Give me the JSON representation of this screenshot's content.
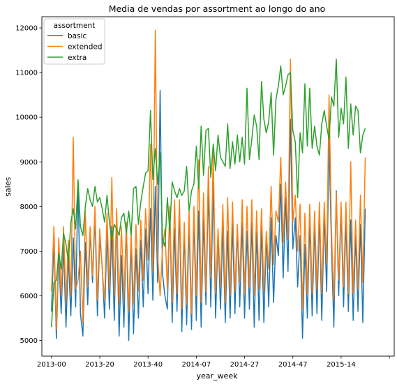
{
  "chart_data": {
    "type": "line",
    "title": "Media de vendas por assortment ao longo do ano",
    "xlabel": "year_week",
    "ylabel": "sales",
    "x_ticks": [
      {
        "pos": 0,
        "label": "2013-00"
      },
      {
        "pos": 20,
        "label": "2013-20"
      },
      {
        "pos": 40,
        "label": "2013-40"
      },
      {
        "pos": 60,
        "label": "2014-07"
      },
      {
        "pos": 80,
        "label": "2014-27"
      },
      {
        "pos": 100,
        "label": "2014-47"
      },
      {
        "pos": 120,
        "label": "2015-14"
      },
      {
        "pos": 140,
        "label": ""
      }
    ],
    "xlim": [
      -4,
      142
    ],
    "ylim": [
      4650,
      12250
    ],
    "y_ticks": [
      5000,
      6000,
      7000,
      8000,
      9000,
      10000,
      11000,
      12000
    ],
    "legend": {
      "title": "assortment",
      "placement": "top-left"
    },
    "series": [
      {
        "name": "basic",
        "color": "#1f77b4",
        "values": [
          5650,
          7250,
          5050,
          6950,
          5600,
          7150,
          5300,
          6900,
          5550,
          7300,
          5750,
          8550,
          5600,
          5100,
          7200,
          5800,
          7450,
          6300,
          7800,
          5550,
          7300,
          6650,
          5500,
          7450,
          5700,
          7550,
          5450,
          7850,
          5100,
          6900,
          5300,
          7650,
          5000,
          7250,
          5150,
          7050,
          5500,
          7250,
          5750,
          7500,
          6050,
          7950,
          5900,
          8450,
          6300,
          10600,
          6500,
          6000,
          5700,
          7950,
          5400,
          7500,
          5650,
          7950,
          5200,
          7450,
          5350,
          7600,
          5250,
          7750,
          5450,
          7900,
          5300,
          7750,
          5800,
          8450,
          5750,
          8600,
          5500,
          7400,
          5700,
          7550,
          5400,
          7450,
          5500,
          7600,
          5600,
          7550,
          5750,
          7650,
          5500,
          7450,
          5700,
          7650,
          5300,
          7450,
          5450,
          7550,
          5400,
          7400,
          5750,
          7750,
          5850,
          7350,
          6900,
          8500,
          6400,
          8200,
          6550,
          9950,
          7050,
          7750,
          6200,
          7350,
          5050,
          7150,
          5500,
          7700,
          5550,
          7600,
          5600,
          7850,
          5450,
          7850,
          6100,
          9500,
          7100,
          5300,
          8350,
          6000,
          7950,
          5750,
          7700,
          5650,
          7700,
          5450,
          7350,
          5650,
          7600,
          5400,
          7950
        ]
      },
      {
        "name": "extended",
        "color": "#ff7f0e",
        "values": [
          6100,
          7550,
          5250,
          7300,
          6000,
          7550,
          5850,
          7250,
          6000,
          9550,
          6150,
          6350,
          7000,
          5400,
          7900,
          6200,
          7550,
          6450,
          8000,
          5900,
          7500,
          6600,
          5900,
          7850,
          6150,
          8650,
          6000,
          7950,
          5800,
          7550,
          5900,
          7650,
          5650,
          7400,
          5800,
          7600,
          6100,
          7700,
          6350,
          7950,
          6800,
          9400,
          6550,
          11950,
          6900,
          6000,
          7050,
          7500,
          6150,
          8000,
          5850,
          8150,
          6050,
          8150,
          5700,
          7650,
          5800,
          7900,
          5600,
          8000,
          6000,
          9050,
          5850,
          8300,
          6100,
          8900,
          6400,
          9200,
          6050,
          7500,
          6200,
          8050,
          5850,
          8200,
          6000,
          8100,
          6100,
          7600,
          6300,
          8150,
          6050,
          8000,
          6200,
          8150,
          6000,
          7900,
          6150,
          7950,
          6100,
          7450,
          6600,
          8450,
          6700,
          7900,
          7650,
          9100,
          7200,
          8550,
          7250,
          11300,
          7650,
          8250,
          7000,
          8050,
          5700,
          7850,
          6050,
          8050,
          6050,
          7900,
          6150,
          8100,
          6050,
          8100,
          6700,
          10500,
          7450,
          5900,
          8300,
          6350,
          8100,
          6200,
          8100,
          6050,
          9000,
          6050,
          7700,
          6150,
          8250,
          6300,
          9100
        ]
      },
      {
        "name": "extra",
        "color": "#2ca02c",
        "values": [
          5300,
          6300,
          6350,
          6950,
          6600,
          7400,
          7150,
          6750,
          7650,
          7950,
          7500,
          8600,
          7550,
          7350,
          8000,
          8400,
          8150,
          8000,
          8450,
          8100,
          8200,
          7950,
          7650,
          8250,
          7650,
          7250,
          7600,
          7500,
          7350,
          7750,
          7850,
          7400,
          7900,
          7350,
          8400,
          8450,
          7600,
          8100,
          8450,
          8750,
          8800,
          10150,
          8600,
          9300,
          8500,
          9200,
          7300,
          7100,
          8200,
          7450,
          8550,
          8350,
          8200,
          8400,
          8250,
          8350,
          8900,
          7900,
          8350,
          8500,
          9350,
          8400,
          9800,
          8700,
          9700,
          9750,
          8650,
          9400,
          8800,
          9600,
          9100,
          9000,
          8900,
          9850,
          8850,
          9450,
          8950,
          9600,
          9000,
          9550,
          8950,
          10650,
          9050,
          9500,
          10050,
          9800,
          9050,
          10800,
          9950,
          9650,
          9900,
          10550,
          9150,
          10400,
          10700,
          11150,
          10500,
          10700,
          10950,
          11000,
          9700,
          9450,
          8200,
          9650,
          9200,
          10750,
          9350,
          10650,
          9300,
          9800,
          9350,
          9150,
          9850,
          10150,
          9800,
          9500,
          10450,
          10250,
          11300,
          9550,
          10200,
          9850,
          10900,
          9300,
          10300,
          9600,
          10250,
          10150,
          9200,
          9600,
          9750
        ]
      }
    ]
  }
}
